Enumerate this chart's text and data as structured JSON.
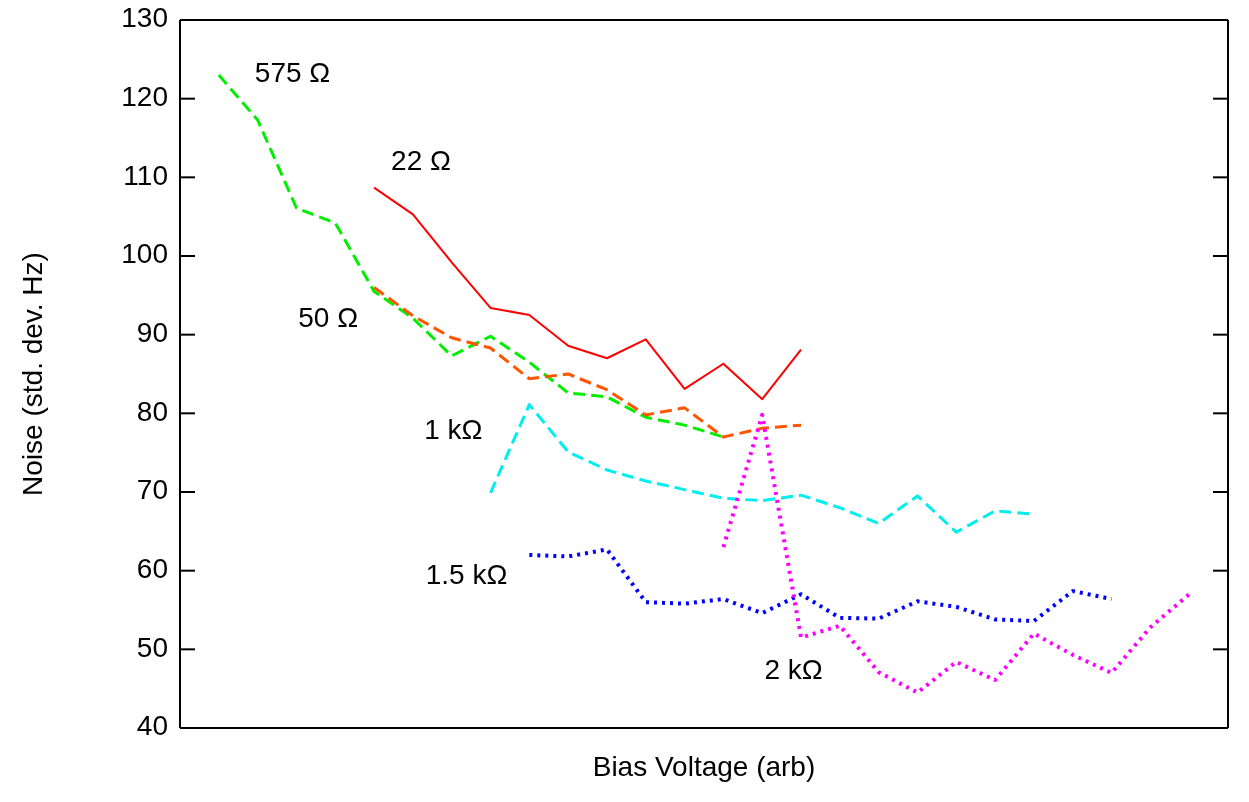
{
  "chart_data": {
    "type": "line",
    "xlabel": "Bias Voltage (arb)",
    "ylabel": "Noise (std. dev. Hz)",
    "categories": [
      null,
      null,
      null,
      null,
      null,
      null,
      null,
      null,
      null,
      null,
      null,
      null,
      null,
      null,
      null,
      null,
      null,
      null,
      null,
      null,
      null,
      null,
      null,
      null,
      null,
      null,
      null,
      null
    ],
    "ylim": [
      40,
      130
    ],
    "yticks": [
      40,
      50,
      60,
      70,
      80,
      90,
      100,
      110,
      120,
      130
    ],
    "tick_labels": "y",
    "grid": false,
    "legend": false,
    "marker": "none",
    "series": [
      {
        "name": "22 Ω",
        "color": "#ff0000",
        "line_style": "solid",
        "values": [
          null,
          null,
          null,
          null,
          null,
          108.7,
          105.3,
          99.2,
          93.4,
          92.5,
          88.6,
          87.0,
          89.4,
          83.1,
          86.3,
          81.8,
          88.1,
          null,
          null,
          null,
          null,
          null,
          null,
          null,
          null,
          null,
          null,
          null
        ]
      },
      {
        "name": "575 Ω",
        "color": "#00ee00",
        "line_style": "dashed",
        "values": [
          null,
          123.0,
          117.3,
          106.1,
          104.2,
          95.5,
          92.1,
          87.3,
          89.8,
          86.5,
          82.6,
          82.1,
          79.5,
          78.5,
          77.0,
          null,
          null,
          null,
          null,
          null,
          null,
          null,
          null,
          null,
          null,
          null,
          null,
          null
        ]
      },
      {
        "name": "50 Ω",
        "color": "#ff5500",
        "line_style": "dashed",
        "values": [
          null,
          null,
          null,
          null,
          null,
          96.0,
          92.4,
          89.6,
          88.3,
          84.4,
          85.0,
          83.0,
          79.8,
          80.7,
          77.0,
          78.1,
          78.5,
          null,
          null,
          null,
          null,
          null,
          null,
          null,
          null,
          null,
          null,
          null
        ]
      },
      {
        "name": "1 kΩ",
        "color": "#00eeee",
        "line_style": "dashed",
        "values": [
          null,
          null,
          null,
          null,
          null,
          null,
          null,
          null,
          69.9,
          81.1,
          75.1,
          72.8,
          71.4,
          70.3,
          69.2,
          68.9,
          69.6,
          68.0,
          66.0,
          69.5,
          64.9,
          67.6,
          67.2,
          null,
          null,
          null,
          null,
          null
        ]
      },
      {
        "name": "1.5 kΩ",
        "color": "#0000ff",
        "line_style": "dotted",
        "values": [
          null,
          null,
          null,
          null,
          null,
          null,
          null,
          null,
          null,
          62.0,
          61.8,
          62.7,
          56.0,
          55.8,
          56.4,
          54.6,
          57.0,
          54.0,
          53.9,
          56.1,
          55.4,
          53.8,
          53.6,
          57.4,
          56.4,
          null,
          null,
          null
        ]
      },
      {
        "name": "2 kΩ",
        "color": "#ff00ff",
        "line_style": "dotted",
        "values": [
          null,
          null,
          null,
          null,
          null,
          null,
          null,
          null,
          null,
          null,
          null,
          null,
          null,
          null,
          63.0,
          79.8,
          51.5,
          53.0,
          47.1,
          44.5,
          48.4,
          46.1,
          52.0,
          49.3,
          47.0,
          52.8,
          57.0,
          null
        ]
      }
    ]
  }
}
